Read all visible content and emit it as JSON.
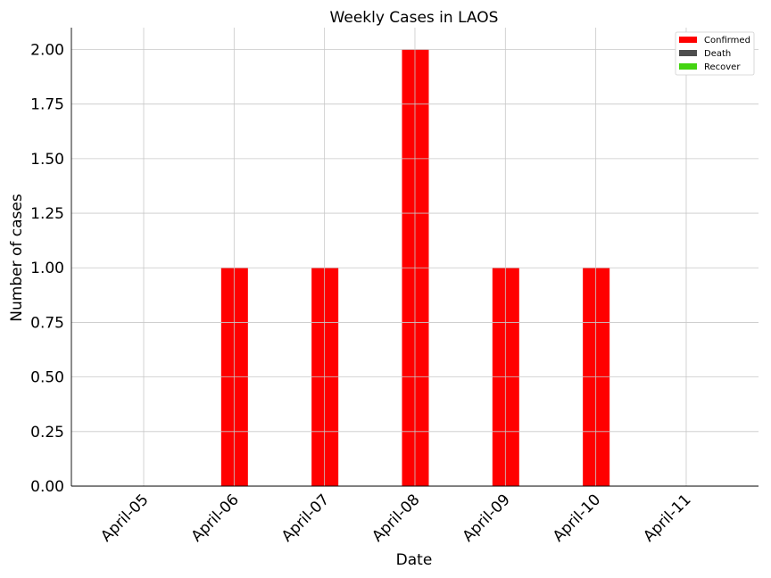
{
  "chart_data": {
    "type": "bar",
    "title": "Weekly Cases in LAOS",
    "xlabel": "Date",
    "ylabel": "Number of cases",
    "categories": [
      "April-05",
      "April-06",
      "April-07",
      "April-08",
      "April-09",
      "April-10",
      "April-11"
    ],
    "series": [
      {
        "name": "Confirmed",
        "color": "#ff0000",
        "values": [
          0,
          1,
          1,
          2,
          1,
          1,
          0
        ]
      },
      {
        "name": "Death",
        "color": "#4d4d4d",
        "values": [
          0,
          0,
          0,
          0,
          0,
          0,
          0
        ]
      },
      {
        "name": "Recover",
        "color": "#44d411",
        "values": [
          0,
          0,
          0,
          0,
          0,
          0,
          0
        ]
      }
    ],
    "ylim": [
      0,
      2.1
    ],
    "yticks": [
      "0.00",
      "0.25",
      "0.50",
      "0.75",
      "1.00",
      "1.25",
      "1.50",
      "1.75",
      "2.00"
    ],
    "grid": true,
    "legend_position": "top-right"
  }
}
